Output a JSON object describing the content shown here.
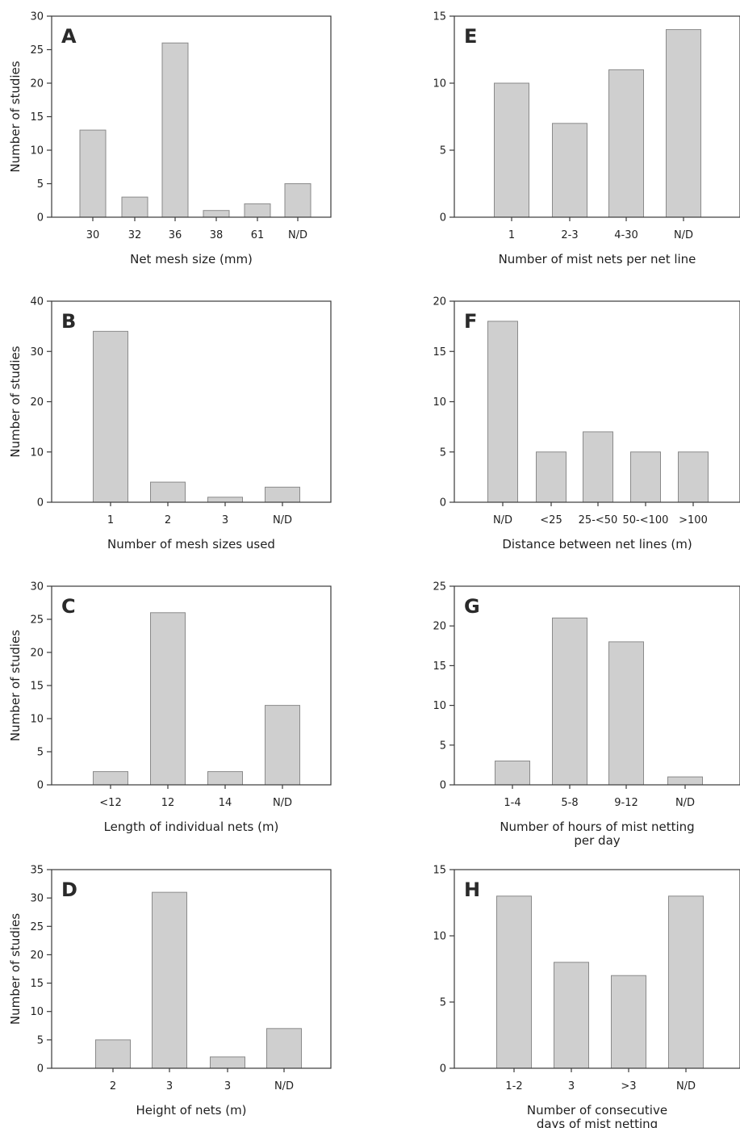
{
  "figure": {
    "ylabel": "Number of studies",
    "bar_color": "#cfcfcf",
    "bar_edge_color": "#8a8a8a",
    "axis_color": "#3a3a3a"
  },
  "chart_data": [
    {
      "panel": "A",
      "type": "bar",
      "categories": [
        "30",
        "32",
        "36",
        "38",
        "61",
        "N/D"
      ],
      "values": [
        13,
        3,
        26,
        1,
        2,
        5
      ],
      "ylim": [
        0,
        30
      ],
      "yticks": [
        0,
        5,
        10,
        15,
        20,
        25,
        30
      ],
      "xlabel": [
        "Net mesh size (mm)"
      ],
      "ylabel": "Number of studies"
    },
    {
      "panel": "B",
      "type": "bar",
      "categories": [
        "1",
        "2",
        "3",
        "N/D"
      ],
      "values": [
        34,
        4,
        1,
        3
      ],
      "ylim": [
        0,
        40
      ],
      "yticks": [
        0,
        10,
        20,
        30,
        40
      ],
      "xlabel": [
        "Number of mesh sizes used"
      ],
      "ylabel": "Number of studies"
    },
    {
      "panel": "C",
      "type": "bar",
      "categories": [
        "<12",
        "12",
        "14",
        "N/D"
      ],
      "values": [
        2,
        26,
        2,
        12
      ],
      "ylim": [
        0,
        30
      ],
      "yticks": [
        0,
        5,
        10,
        15,
        20,
        25,
        30
      ],
      "xlabel": [
        "Length of individual nets (m)"
      ],
      "ylabel": "Number of studies"
    },
    {
      "panel": "D",
      "type": "bar",
      "categories": [
        "2",
        "3",
        "3",
        "N/D"
      ],
      "values": [
        5,
        31,
        2,
        7
      ],
      "ylim": [
        0,
        35
      ],
      "yticks": [
        0,
        5,
        10,
        15,
        20,
        25,
        30,
        35
      ],
      "xlabel": [
        "Height of nets (m)"
      ],
      "ylabel": "Number of studies"
    },
    {
      "panel": "E",
      "type": "bar",
      "categories": [
        "1",
        "2-3",
        "4-30",
        "N/D"
      ],
      "values": [
        10,
        7,
        11,
        14
      ],
      "ylim": [
        0,
        15
      ],
      "yticks": [
        0,
        5,
        10,
        15
      ],
      "xlabel": [
        "Number of mist nets per net line"
      ]
    },
    {
      "panel": "F",
      "type": "bar",
      "categories": [
        "N/D",
        "<25",
        "25-<50",
        "50-<100",
        ">100"
      ],
      "values": [
        18,
        5,
        7,
        5,
        5
      ],
      "ylim": [
        0,
        20
      ],
      "yticks": [
        0,
        5,
        10,
        15,
        20
      ],
      "xlabel": [
        "Distance between net lines (m)"
      ]
    },
    {
      "panel": "G",
      "type": "bar",
      "categories": [
        "1-4",
        "5-8",
        "9-12",
        "N/D"
      ],
      "values": [
        3,
        21,
        18,
        1
      ],
      "ylim": [
        0,
        25
      ],
      "yticks": [
        0,
        5,
        10,
        15,
        20,
        25
      ],
      "xlabel": [
        "Number of hours of mist netting",
        "per day"
      ]
    },
    {
      "panel": "H",
      "type": "bar",
      "categories": [
        "1-2",
        "3",
        ">3",
        "N/D"
      ],
      "values": [
        13,
        8,
        7,
        13
      ],
      "ylim": [
        0,
        15
      ],
      "yticks": [
        0,
        5,
        10,
        15
      ],
      "xlabel": [
        "Number of consecutive",
        "days of mist netting"
      ]
    }
  ]
}
